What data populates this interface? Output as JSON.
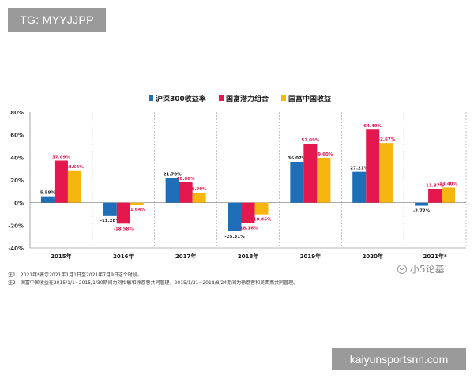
{
  "overlay": {
    "tag_text": "TG: MYYJJPP",
    "watermark_text": "kaiyunsportsnn.com"
  },
  "brand": {
    "text": "小5论基",
    "icon": "wechat-logo-icon"
  },
  "notes": [
    "注1：2021年*表示2021年1月1日至2021年7月9日这个时段。",
    "注2：国富中国收益在2015/1/1~2015/1/30期间为刘怡敏和徐荔蓉共同管理，2015/1/31~2018/8/24期间为徐荔蓉和吴西燕共同管理。"
  ],
  "chart_data": {
    "type": "bar",
    "categories": [
      "2015年",
      "2016年",
      "2017年",
      "2018年",
      "2019年",
      "2020年",
      "2021年*"
    ],
    "series": [
      {
        "name": "沪深300收益率",
        "color": "#1f6fb8",
        "values": [
          5.58,
          -11.28,
          21.78,
          -25.31,
          36.07,
          27.21,
          -2.72
        ],
        "labels": [
          "5.58%",
          "-11.28%",
          "21.78%",
          "-25.31%",
          "36.07%",
          "27.21%",
          "-2.72%"
        ]
      },
      {
        "name": "国富潜力组合",
        "color": "#e5174f",
        "values": [
          37.09,
          -18.58,
          18.08,
          -18.16,
          52.09,
          64.49,
          11.87
        ],
        "labels": [
          "37.09%",
          "-18.58%",
          "18.08%",
          "-18.16%",
          "52.09%",
          "64.49%",
          "11.87%"
        ]
      },
      {
        "name": "国富中国收益",
        "color": "#f7b50f",
        "values": [
          28.54,
          -1.64,
          8.9,
          -10.46,
          39.6,
          52.67,
          13.4
        ],
        "labels": [
          "28.54%",
          "-1.64%",
          "8.90%",
          "-10.46%",
          "39.60%",
          "52.67%",
          "13.40%"
        ]
      }
    ],
    "yticks": [
      "80%",
      "60%",
      "40%",
      "20%",
      "0%",
      "-20%",
      "-40%"
    ],
    "ylim": [
      -40,
      80
    ],
    "legend_position": "top-center",
    "grid": false,
    "label_colors": {
      "positive": "#1a1a1a",
      "negative_or_fund": "#e5174f"
    }
  }
}
